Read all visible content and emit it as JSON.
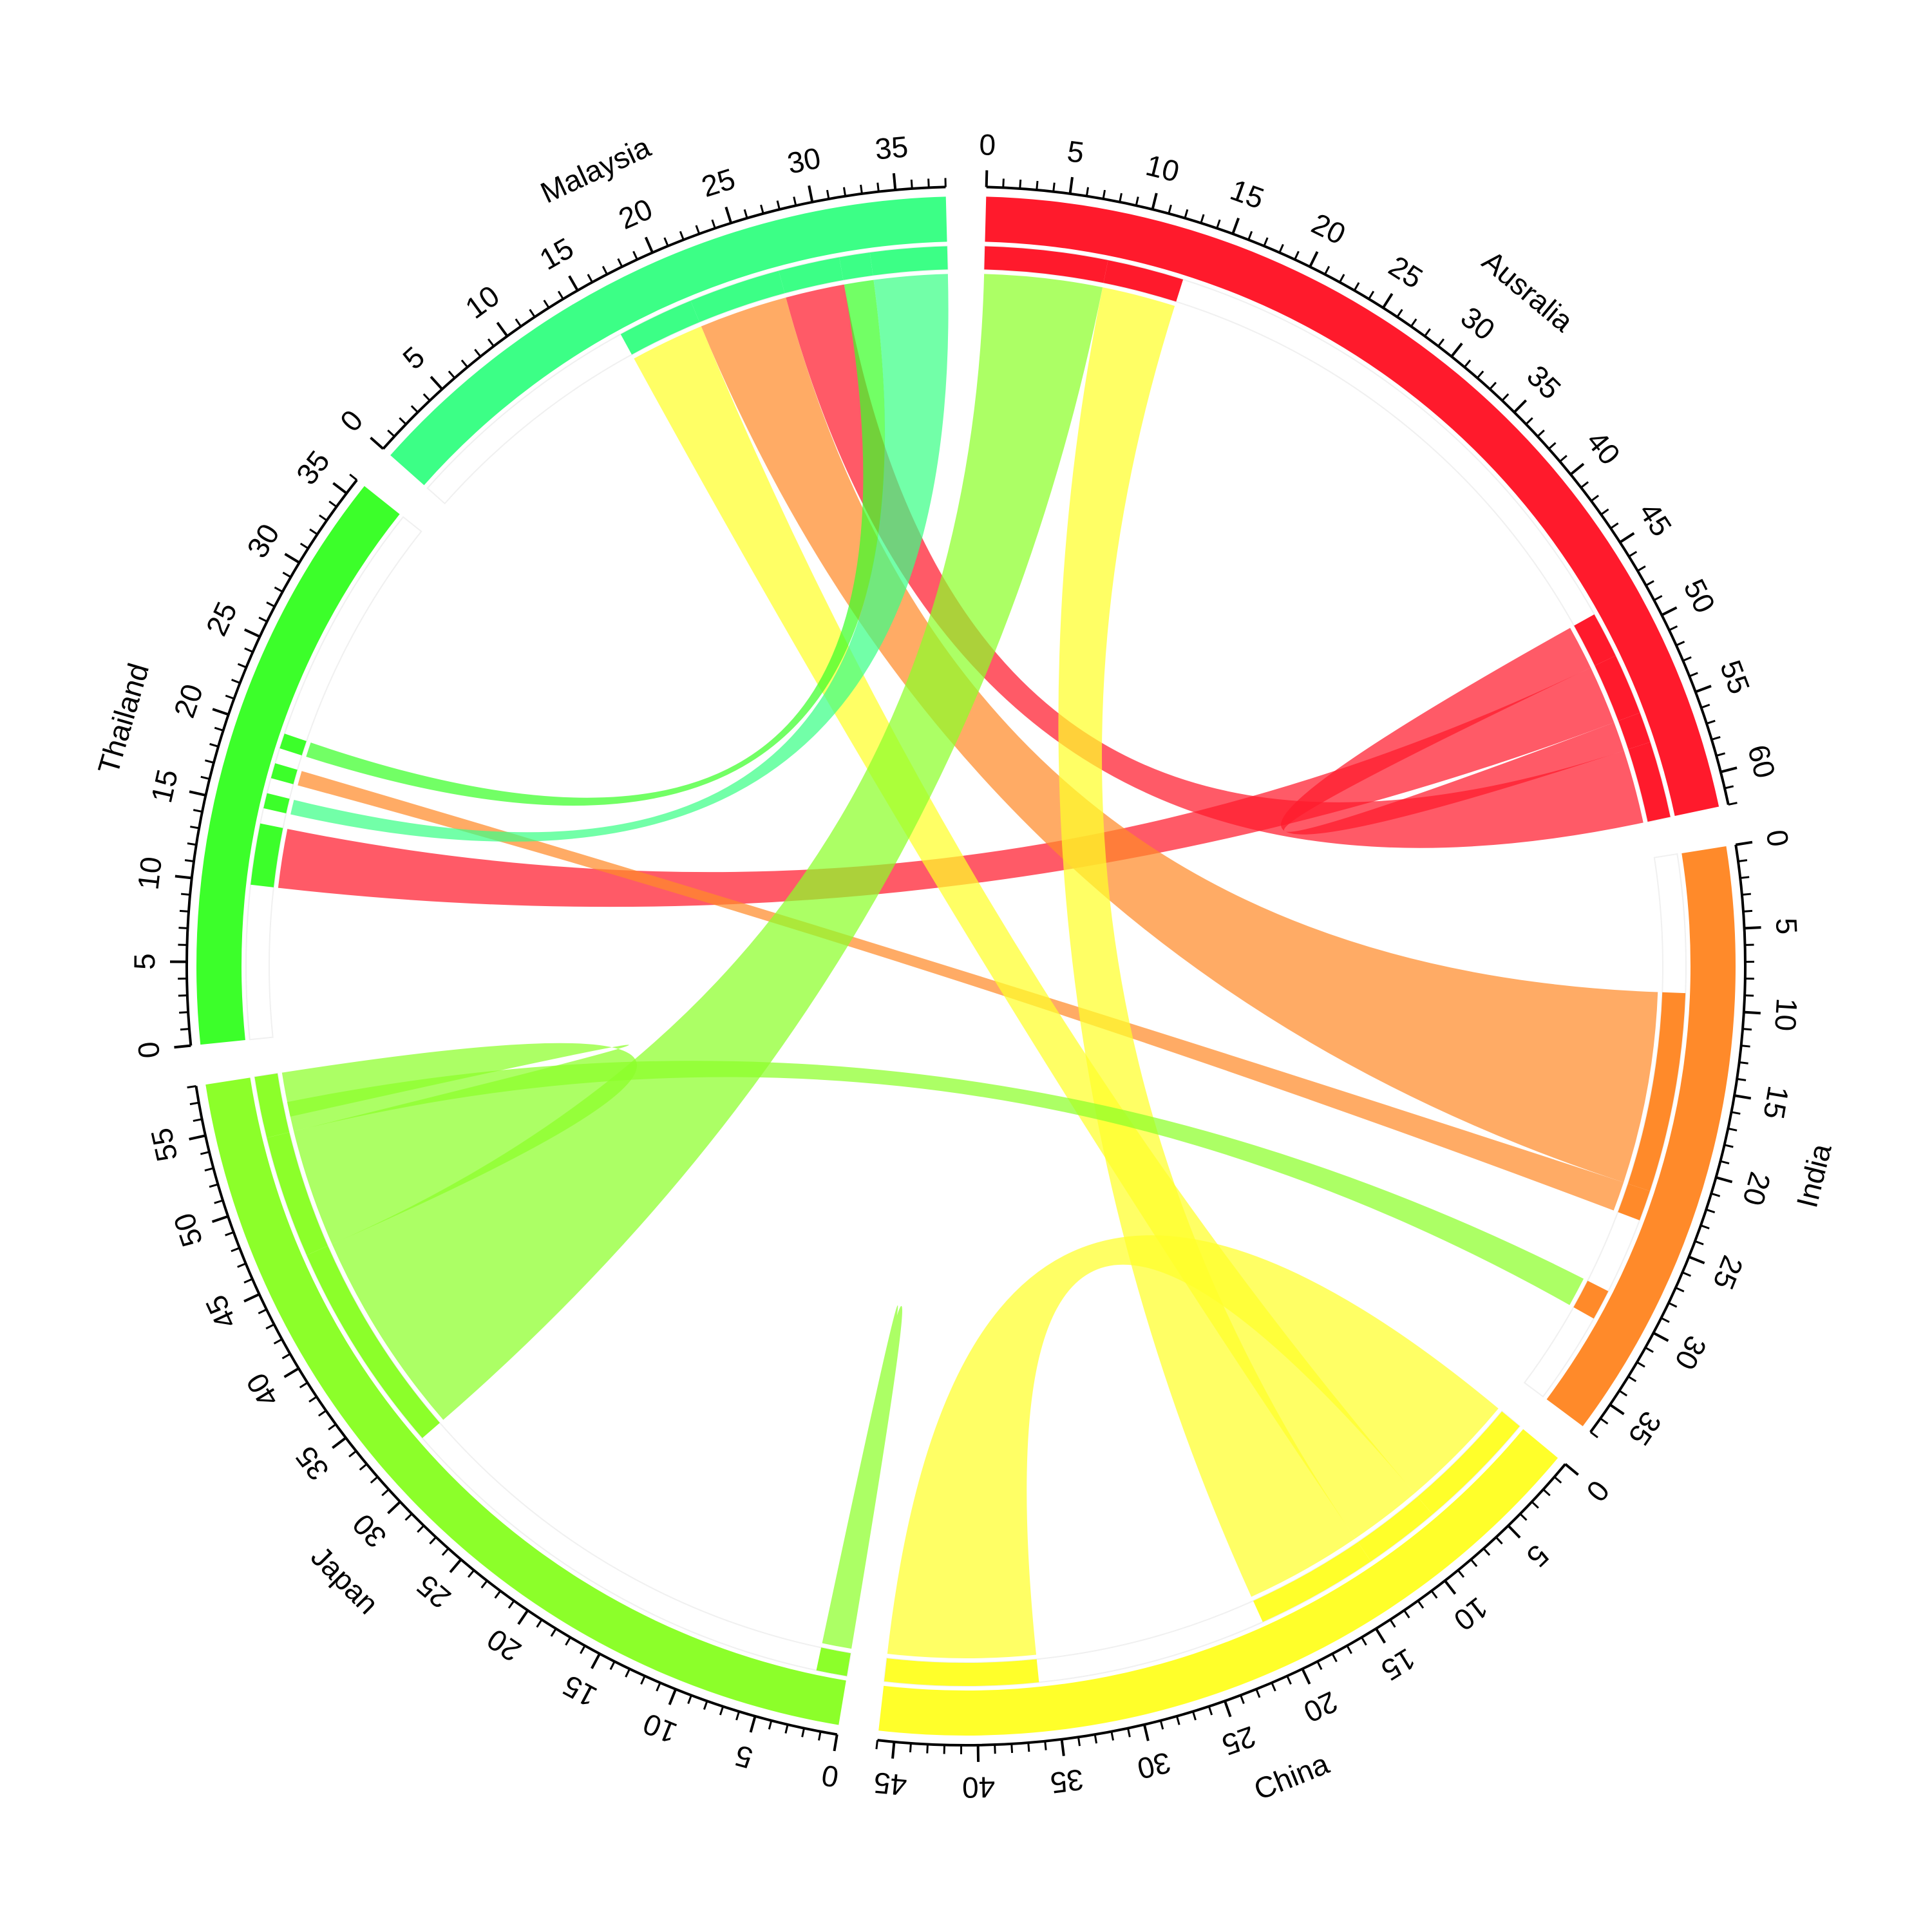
{
  "chart_data": {
    "type": "chord",
    "title": "",
    "sectors": [
      {
        "name": "Ausralia",
        "total": 62,
        "color": "#ff1a2c",
        "tick_labels": [
          "0",
          "5",
          "10",
          "15",
          "20",
          "25",
          "30",
          "35",
          "40",
          "45",
          "50",
          "55",
          "60"
        ]
      },
      {
        "name": "India",
        "total": 37,
        "color": "#ff8a2a",
        "tick_labels": [
          "0",
          "5",
          "10",
          "15",
          "20",
          "25",
          "30",
          "35"
        ]
      },
      {
        "name": "China",
        "total": 46,
        "color": "#ffff2a",
        "tick_labels": [
          "0",
          "5",
          "10",
          "15",
          "20",
          "25",
          "30",
          "35",
          "40",
          "45"
        ]
      },
      {
        "name": "Japan",
        "total": 58,
        "color": "#8cff2a",
        "tick_labels": [
          "0",
          "5",
          "10",
          "15",
          "20",
          "25",
          "30",
          "35",
          "40",
          "45",
          "50",
          "55"
        ]
      },
      {
        "name": "Thailand",
        "total": 36,
        "color": "#3cff2a",
        "tick_labels": [
          "0",
          "5",
          "10",
          "15",
          "20",
          "25",
          "30",
          "35"
        ]
      },
      {
        "name": "Malaysia",
        "total": 38,
        "color": "#3cff86",
        "tick_labels": [
          "0",
          "5",
          "10",
          "15",
          "20",
          "25",
          "30",
          "35"
        ]
      }
    ],
    "links": [
      {
        "source": "Ausralia",
        "source_range": [
          48,
          51
        ],
        "target": "Ausralia",
        "target_range": [
          55,
          57
        ],
        "color": "#ff1a2c"
      },
      {
        "source": "Ausralia",
        "source_range": [
          51,
          55
        ],
        "target": "Thailand",
        "target_range": [
          10,
          14
        ],
        "color": "#ff1a2c"
      },
      {
        "source": "Ausralia",
        "source_range": [
          57,
          62
        ],
        "target": "Malaysia",
        "target_range": [
          27,
          31
        ],
        "color": "#ff1a2c"
      },
      {
        "source": "India",
        "source_range": [
          9,
          22
        ],
        "target": "Malaysia",
        "target_range": [
          21,
          27
        ],
        "color": "#ff8a2a"
      },
      {
        "source": "India",
        "source_range": [
          22,
          24
        ],
        "target": "Thailand",
        "target_range": [
          17,
          18
        ],
        "color": "#ff8a2a"
      },
      {
        "source": "China",
        "source_range": [
          0,
          8
        ],
        "target": "China",
        "target_range": [
          36,
          46
        ],
        "color": "#ffff2a"
      },
      {
        "source": "China",
        "source_range": [
          8,
          13
        ],
        "target": "Malaysia",
        "target_range": [
          16,
          21
        ],
        "color": "#ffff2a"
      },
      {
        "source": "China",
        "source_range": [
          13,
          21
        ],
        "target": "Ausralia",
        "target_range": [
          8,
          13
        ],
        "color": "#ffff2a"
      },
      {
        "source": "Japan",
        "source_range": [
          0,
          2
        ],
        "target": "Japan",
        "target_range": [
          1,
          2
        ],
        "color": "#8cff2a"
      },
      {
        "source": "Japan",
        "source_range": [
          32,
          46
        ],
        "target": "Ausralia",
        "target_range": [
          0,
          8
        ],
        "color": "#8cff2a"
      },
      {
        "source": "Japan",
        "source_range": [
          46,
          54
        ],
        "target": "Japan",
        "target_range": [
          55,
          58
        ],
        "color": "#8cff2a"
      },
      {
        "source": "Japan",
        "source_range": [
          54,
          56
        ],
        "target": "India",
        "target_range": [
          29,
          31
        ],
        "color": "#8cff2a"
      },
      {
        "source": "Thailand",
        "source_range": [
          19,
          20
        ],
        "target": "Malaysia",
        "target_range": [
          31,
          33
        ],
        "color": "#3cff2a"
      },
      {
        "source": "Malaysia",
        "source_range": [
          33,
          38
        ],
        "target": "Thailand",
        "target_range": [
          15,
          16
        ],
        "color": "#3cff86"
      }
    ],
    "grid": false,
    "legend": "none"
  }
}
